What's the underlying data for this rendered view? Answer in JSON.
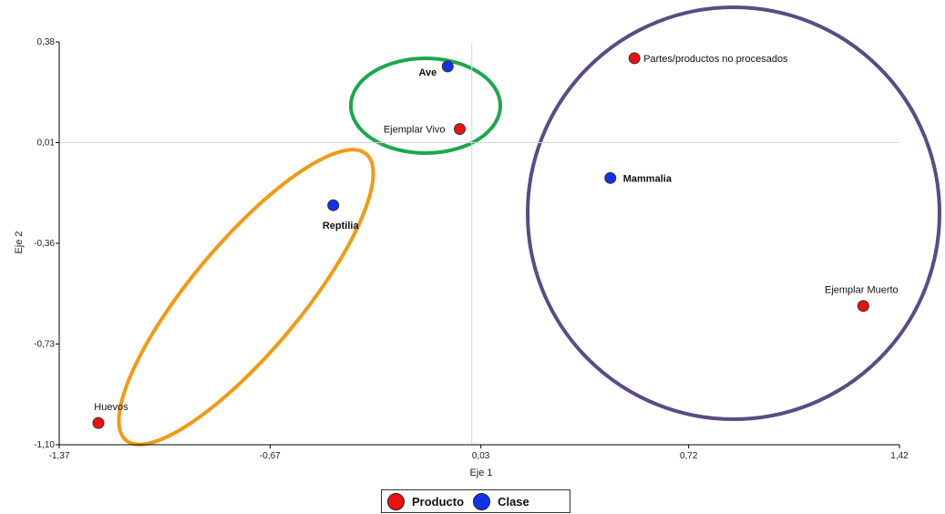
{
  "chart_data": {
    "type": "scatter",
    "title": "",
    "xlabel": "Eje 1",
    "ylabel": "Eje 2",
    "xlim": [
      -1.37,
      1.42
    ],
    "ylim": [
      -1.1,
      0.38
    ],
    "xticks": [
      "-1,37",
      "-0,67",
      "0,03",
      "0,72",
      "1,42"
    ],
    "xtick_values": [
      -1.37,
      -0.67,
      0.03,
      0.72,
      1.42
    ],
    "yticks": [
      "0,38",
      "0,01",
      "-0,36",
      "-0,73",
      "-1,10"
    ],
    "ytick_values": [
      0.38,
      0.01,
      -0.36,
      -0.73,
      -1.1
    ],
    "reference_lines": {
      "x": 0.0,
      "y": 0.01
    },
    "series": [
      {
        "name": "Producto",
        "color": "#ee1111",
        "points": [
          {
            "label": "Partes/productos no procesados",
            "x": 0.54,
            "y": 0.32
          },
          {
            "label": "Ejemplar Vivo",
            "x": -0.04,
            "y": 0.06
          },
          {
            "label": "Ejemplar Muerto",
            "x": 1.3,
            "y": -0.59
          },
          {
            "label": "Huevos",
            "x": -1.24,
            "y": -1.02
          }
        ]
      },
      {
        "name": "Clase",
        "color": "#1133ee",
        "points": [
          {
            "label": "Ave",
            "x": -0.08,
            "y": 0.29
          },
          {
            "label": "Mammalia",
            "x": 0.46,
            "y": -0.12
          },
          {
            "label": "Reptilia",
            "x": -0.46,
            "y": -0.22
          }
        ]
      }
    ],
    "groupings": [
      {
        "members": [
          "Ave",
          "Ejemplar Vivo"
        ],
        "color": "#1aa84f"
      },
      {
        "members": [
          "Reptilia",
          "Huevos"
        ],
        "color": "#f29a12"
      },
      {
        "members": [
          "Mammalia",
          "Partes/productos no procesados",
          "Ejemplar Muerto"
        ],
        "color": "#5c4a85"
      }
    ],
    "legend": {
      "position": "bottom-center",
      "items": [
        {
          "label": "Producto",
          "color": "#ee1111"
        },
        {
          "label": "Clase",
          "color": "#1133ee"
        }
      ]
    }
  }
}
